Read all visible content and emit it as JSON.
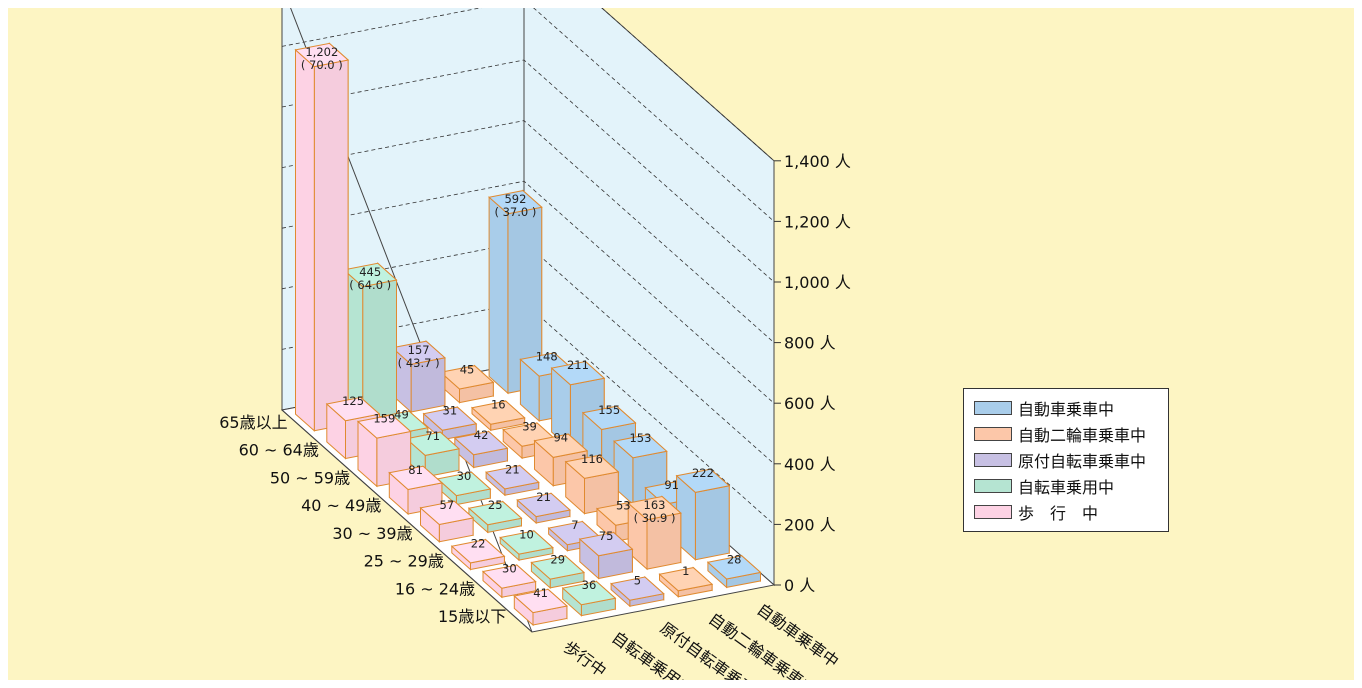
{
  "chart_data": {
    "type": "bar",
    "variant": "3d-bar",
    "title": "",
    "y_unit": "人",
    "ylim": [
      0,
      1400
    ],
    "y_ticks": [
      "0 人",
      "200 人",
      "400 人",
      "600 人",
      "800 人",
      "1,000 人",
      "1,200 人",
      "1,400 人"
    ],
    "grid": true,
    "legend_position": "right",
    "age_groups": [
      "65歳以上",
      "60 ~ 64歳",
      "50 ~ 59歳",
      "40 ~ 49歳",
      "30 ~ 39歳",
      "25 ~ 29歳",
      "16 ~ 24歳",
      "15歳以下"
    ],
    "transport_categories": [
      "歩行中",
      "自転車乗用中",
      "原付自転車乗車中",
      "自動二輪車乗車中",
      "自動車乗車中"
    ],
    "series": [
      {
        "name": "自動車乗車中",
        "color": "#a9cdea",
        "values": [
          592,
          148,
          211,
          155,
          153,
          91,
          222,
          28
        ],
        "labels": [
          "592\n( 37.0 )",
          "148",
          "211",
          "155",
          "153",
          "91",
          "222",
          "28"
        ]
      },
      {
        "name": "自動二輪車乗車中",
        "color": "#fcc7a9",
        "values": [
          45,
          16,
          39,
          94,
          116,
          53,
          163,
          1
        ],
        "labels": [
          "45",
          "16",
          "39",
          "94",
          "116",
          "53",
          "163\n( 30.9 )",
          "1"
        ]
      },
      {
        "name": "原付自転車乗車中",
        "color": "#c7c0e3",
        "values": [
          157,
          31,
          42,
          21,
          21,
          7,
          75,
          5
        ],
        "labels": [
          "157\n( 43.7 )",
          "31",
          "42",
          "21",
          "21",
          "7",
          "75",
          "5"
        ]
      },
      {
        "name": "自転車乗用中",
        "color": "#b5e4d2",
        "values": [
          445,
          49,
          71,
          30,
          25,
          10,
          29,
          36
        ],
        "labels": [
          "445\n( 64.0 )",
          "49",
          "71",
          "30",
          "25",
          "10",
          "29",
          "36"
        ]
      },
      {
        "name": "歩行中",
        "color": "#fdd2e4",
        "values": [
          1202,
          125,
          159,
          81,
          57,
          22,
          30,
          41
        ],
        "labels": [
          "1,202\n( 70.0 )",
          "125",
          "159",
          "81",
          "57",
          "22",
          "30",
          "41"
        ]
      }
    ]
  },
  "legend": {
    "items": [
      {
        "label": "自動車乗車中",
        "color": "#a9cdea"
      },
      {
        "label": "自動二輪車乗車中",
        "color": "#fcc7a9"
      },
      {
        "label": "原付自転車乗車中",
        "color": "#c7c0e3"
      },
      {
        "label": "自転車乗用中",
        "color": "#b5e4d2"
      },
      {
        "label": "歩　行　中",
        "color": "#fdd2e4"
      }
    ]
  },
  "colors": {
    "background": "#fdf5c3",
    "wall": "#e3f3fa",
    "bar_edge": "#e08a30"
  }
}
